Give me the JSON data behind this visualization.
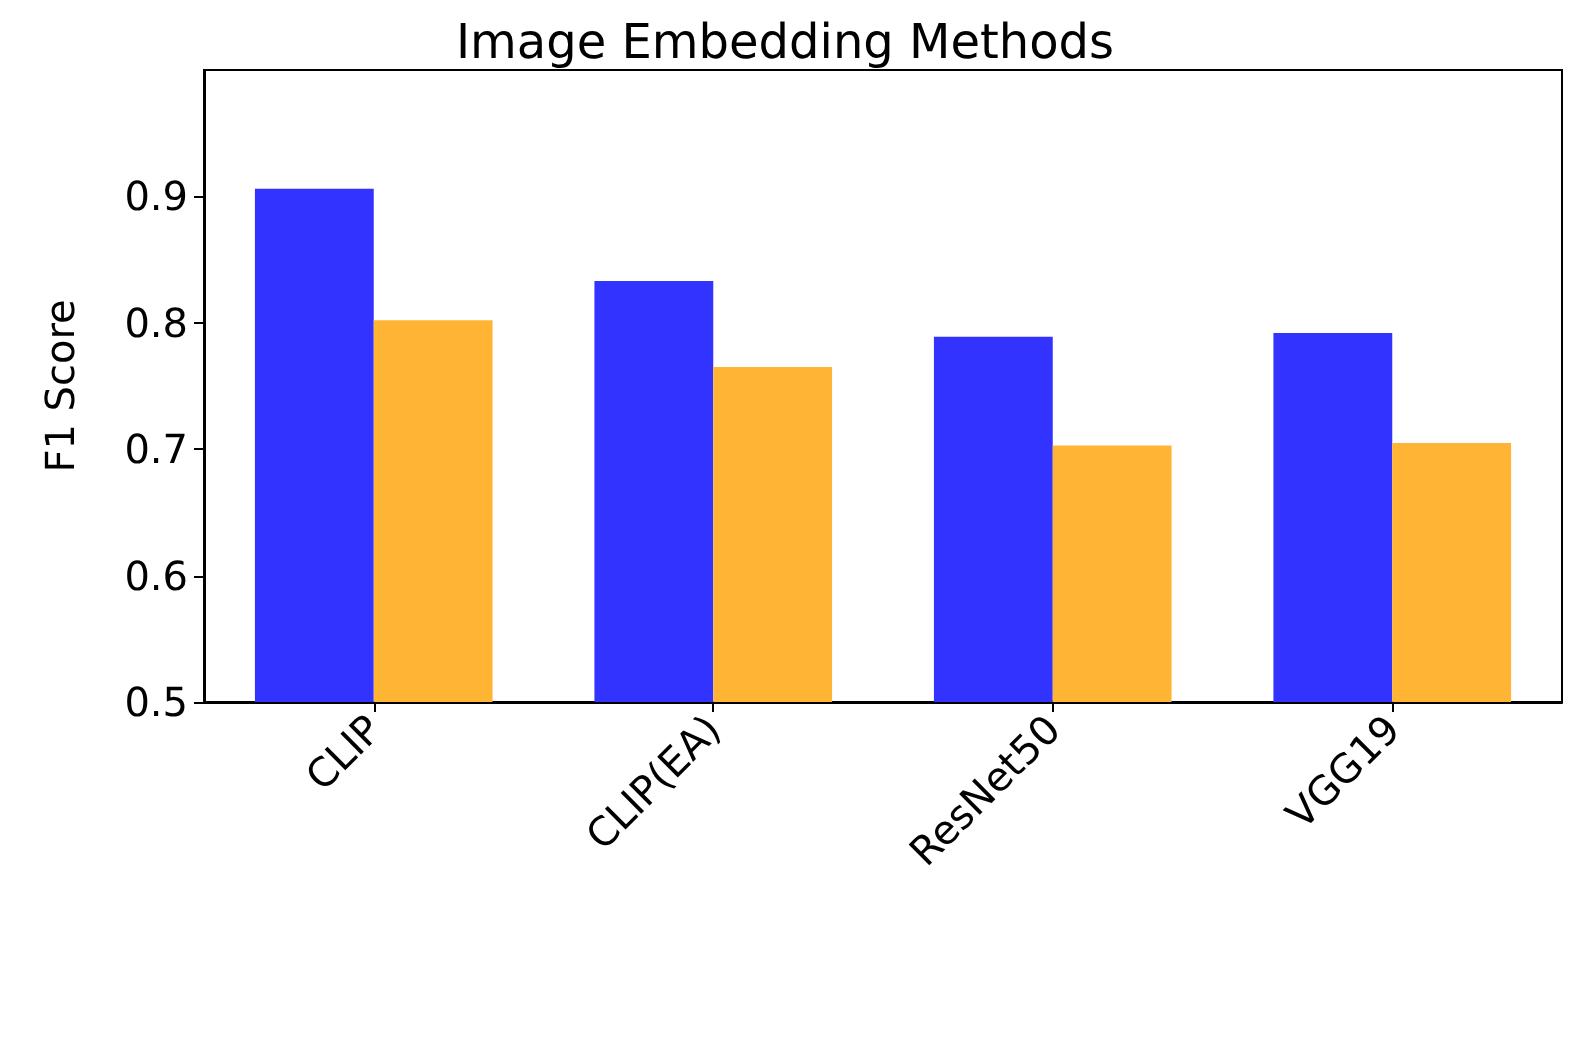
{
  "chart_data": {
    "type": "bar",
    "title": "Image Embedding Methods",
    "ylabel": "F1 Score",
    "categories": [
      "CLIP",
      "CLIP(EA)",
      "ResNet50",
      "VGG19"
    ],
    "series": [
      {
        "color": "#3333ff",
        "values": [
          0.906,
          0.833,
          0.789,
          0.792
        ]
      },
      {
        "color": "#ffb533",
        "values": [
          0.802,
          0.765,
          0.703,
          0.705
        ]
      }
    ],
    "ylim": [
      0.5,
      1.0
    ],
    "yticks": [
      0.5,
      0.6,
      0.7,
      0.8,
      0.9
    ],
    "grid": false
  }
}
